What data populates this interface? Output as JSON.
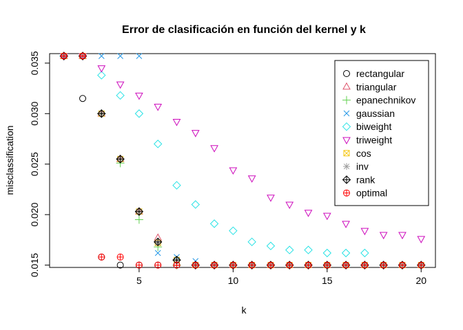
{
  "chart_data": {
    "type": "scatter",
    "title": "Error de clasificación en función del kernel y k",
    "xlabel": "k",
    "ylabel": "misclassification",
    "xlim": [
      0.24,
      20.76
    ],
    "ylim": [
      0.01477,
      0.03594
    ],
    "xticks": [
      5,
      10,
      15,
      20
    ],
    "yticks": [
      0.015,
      0.02,
      0.025,
      0.03,
      0.035
    ],
    "ytick_labels": [
      "0.015",
      "0.020",
      "0.025",
      "0.030",
      "0.035"
    ],
    "legend_position": "top-right",
    "series": [
      {
        "name": "rectangular",
        "color": "#000000",
        "marker": "circle",
        "x": [
          1,
          2,
          3,
          4,
          5,
          6,
          7,
          8,
          9,
          10,
          11,
          12,
          13,
          14,
          15,
          16,
          17,
          18,
          19,
          20
        ],
        "y": [
          0.0357,
          0.0315,
          0.0158,
          0.015,
          0.015,
          0.015,
          0.015,
          0.015,
          0.015,
          0.015,
          0.015,
          0.015,
          0.015,
          0.015,
          0.015,
          0.015,
          0.015,
          0.015,
          0.015,
          0.015
        ]
      },
      {
        "name": "triangular",
        "color": "#DF536B",
        "marker": "triangle-up",
        "x": [
          1,
          2,
          3,
          4,
          5,
          6,
          7,
          8,
          9,
          10,
          11,
          12,
          13,
          14,
          15,
          16,
          17,
          18,
          19,
          20
        ],
        "y": [
          0.0357,
          0.0357,
          0.03,
          0.0255,
          0.0203,
          0.0177,
          0.0152,
          0.015,
          0.015,
          0.015,
          0.015,
          0.015,
          0.015,
          0.015,
          0.015,
          0.015,
          0.015,
          0.015,
          0.015,
          0.015
        ]
      },
      {
        "name": "epanechnikov",
        "color": "#61D04F",
        "marker": "plus",
        "x": [
          1,
          2,
          3,
          4,
          5,
          6,
          7,
          8,
          9,
          10,
          11,
          12,
          13,
          14,
          15,
          16,
          17,
          18,
          19,
          20
        ],
        "y": [
          0.0357,
          0.0357,
          0.03,
          0.0251,
          0.0195,
          0.0168,
          0.015,
          0.015,
          0.015,
          0.015,
          0.015,
          0.015,
          0.015,
          0.015,
          0.015,
          0.015,
          0.015,
          0.015,
          0.015,
          0.015
        ]
      },
      {
        "name": "gaussian",
        "color": "#2297E6",
        "marker": "x",
        "x": [
          1,
          2,
          3,
          4,
          5,
          6,
          7,
          8,
          9,
          10,
          11,
          12,
          13,
          14,
          15,
          16,
          17,
          18,
          19,
          20
        ],
        "y": [
          0.0357,
          0.0357,
          0.0357,
          0.0357,
          0.0357,
          0.0162,
          0.0158,
          0.0154,
          0.015,
          0.015,
          0.015,
          0.015,
          0.015,
          0.015,
          0.015,
          0.015,
          0.015,
          0.015,
          0.015,
          0.015
        ]
      },
      {
        "name": "biweight",
        "color": "#28E2E5",
        "marker": "diamond",
        "x": [
          1,
          2,
          3,
          4,
          5,
          6,
          7,
          8,
          9,
          10,
          11,
          12,
          13,
          14,
          15,
          16,
          17,
          18,
          19,
          20
        ],
        "y": [
          0.0357,
          0.0357,
          0.0338,
          0.0318,
          0.03,
          0.027,
          0.0229,
          0.021,
          0.0191,
          0.0184,
          0.0173,
          0.0169,
          0.0165,
          0.0165,
          0.0162,
          0.0162,
          0.0162,
          0.015,
          0.015,
          0.015
        ]
      },
      {
        "name": "triweight",
        "color": "#CD0BBC",
        "marker": "triangle-down",
        "x": [
          1,
          2,
          3,
          4,
          5,
          6,
          7,
          8,
          9,
          10,
          11,
          12,
          13,
          14,
          15,
          16,
          17,
          18,
          19,
          20
        ],
        "y": [
          0.0357,
          0.0357,
          0.0345,
          0.0329,
          0.0318,
          0.0307,
          0.0292,
          0.0281,
          0.0266,
          0.0244,
          0.0236,
          0.0217,
          0.021,
          0.0202,
          0.0199,
          0.0191,
          0.0184,
          0.018,
          0.018,
          0.0176
        ]
      },
      {
        "name": "cos",
        "color": "#F5C710",
        "marker": "square-x",
        "x": [
          1,
          2,
          3,
          4,
          5,
          6,
          7,
          8,
          9,
          10,
          11,
          12,
          13,
          14,
          15,
          16,
          17,
          18,
          19,
          20
        ],
        "y": [
          0.0357,
          0.0357,
          0.03,
          0.0255,
          0.0203,
          0.0172,
          0.0155,
          0.015,
          0.015,
          0.015,
          0.015,
          0.015,
          0.015,
          0.015,
          0.015,
          0.015,
          0.015,
          0.015,
          0.015,
          0.015
        ]
      },
      {
        "name": "inv",
        "color": "#9E9E9E",
        "marker": "asterisk",
        "x": [
          1,
          2,
          3,
          4,
          5,
          6,
          7,
          8,
          9,
          10,
          11,
          12,
          13,
          14,
          15,
          16,
          17,
          18,
          19,
          20
        ],
        "y": [
          0.0357,
          0.0357,
          0.03,
          0.0255,
          0.0203,
          0.0172,
          0.0155,
          0.015,
          0.015,
          0.015,
          0.015,
          0.015,
          0.015,
          0.015,
          0.015,
          0.015,
          0.015,
          0.015,
          0.015,
          0.015
        ]
      },
      {
        "name": "rank",
        "color": "#000000",
        "marker": "diamond-plus",
        "x": [
          1,
          2,
          3,
          4,
          5,
          6,
          7,
          8,
          9,
          10,
          11,
          12,
          13,
          14,
          15,
          16,
          17,
          18,
          19,
          20
        ],
        "y": [
          0.0357,
          0.0357,
          0.03,
          0.0255,
          0.0203,
          0.0173,
          0.0155,
          0.015,
          0.015,
          0.015,
          0.015,
          0.015,
          0.015,
          0.015,
          0.015,
          0.015,
          0.015,
          0.015,
          0.015,
          0.015
        ]
      },
      {
        "name": "optimal",
        "color": "#FF0000",
        "marker": "circle-plus",
        "x": [
          1,
          2,
          3,
          4,
          5,
          6,
          7,
          8,
          9,
          10,
          11,
          12,
          13,
          14,
          15,
          16,
          17,
          18,
          19,
          20
        ],
        "y": [
          0.0357,
          0.0357,
          0.0158,
          0.0158,
          0.015,
          0.015,
          0.015,
          0.015,
          0.015,
          0.015,
          0.015,
          0.015,
          0.015,
          0.015,
          0.015,
          0.015,
          0.015,
          0.015,
          0.015,
          0.015
        ]
      }
    ]
  }
}
